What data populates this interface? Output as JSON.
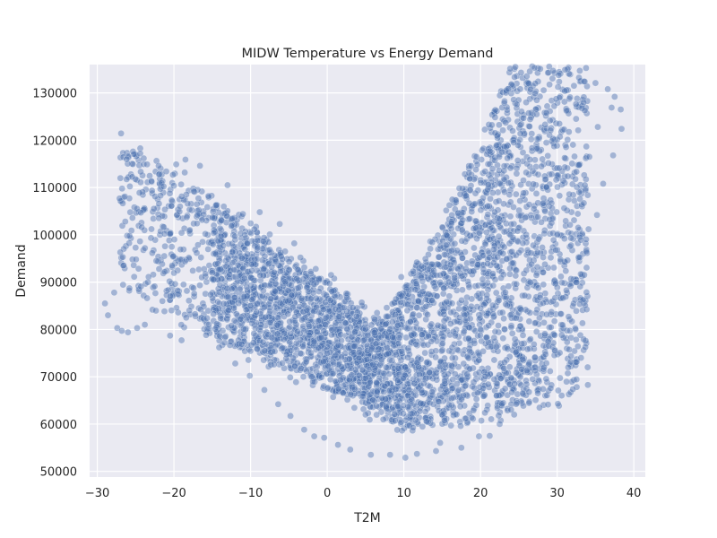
{
  "chart_data": {
    "type": "scatter",
    "title": "MIDW Temperature vs Energy Demand",
    "xlabel": "T2M",
    "ylabel": "Demand",
    "xlim": [
      -31.0,
      41.5
    ],
    "ylim": [
      48800,
      136000
    ],
    "xticks": [
      -30,
      -20,
      -10,
      0,
      10,
      20,
      30,
      40
    ],
    "yticks": [
      50000,
      60000,
      70000,
      80000,
      90000,
      100000,
      110000,
      120000,
      130000
    ],
    "grid": true,
    "legend": "none",
    "style": {
      "background": "#eaeaf2",
      "grid_color": "#ffffff",
      "point_color": "#4c72b0",
      "point_edge": "#ffffff",
      "point_opacity": 0.45
    },
    "points": [
      [
        -29,
        85500
      ],
      [
        -28.6,
        83000
      ],
      [
        -27.8,
        87800
      ],
      [
        -27.4,
        80300
      ],
      [
        -26.8,
        79700
      ],
      [
        -26,
        79400
      ],
      [
        -24.8,
        80300
      ],
      [
        -23.8,
        81000
      ],
      [
        -27.1,
        107700
      ],
      [
        -26.4,
        108100
      ],
      [
        -24.5,
        108900
      ],
      [
        -23.5,
        114900
      ],
      [
        -22,
        114600
      ],
      [
        -21,
        113400
      ],
      [
        -19.7,
        114900
      ],
      [
        -18.5,
        115900
      ],
      [
        -16.6,
        114600
      ],
      [
        -13,
        110500
      ],
      [
        -27,
        96300
      ],
      [
        -26.6,
        93500
      ],
      [
        -25.8,
        99800
      ],
      [
        -25,
        97300
      ],
      [
        -24.2,
        101600
      ],
      [
        -20.5,
        78700
      ],
      [
        -19,
        77700
      ],
      [
        -8.8,
        104800
      ],
      [
        -6.2,
        102300
      ],
      [
        -4.3,
        98200
      ],
      [
        12.3,
        93400
      ],
      [
        15.1,
        98700
      ],
      [
        17.7,
        104700
      ],
      [
        20.6,
        113400
      ],
      [
        22.8,
        117500
      ],
      [
        25.2,
        121400
      ],
      [
        26.4,
        122900
      ],
      [
        28.6,
        125800
      ],
      [
        31,
        130400
      ],
      [
        33.6,
        132400
      ],
      [
        35,
        132100
      ],
      [
        36.6,
        130800
      ],
      [
        37.5,
        129200
      ],
      [
        38.3,
        126500
      ],
      [
        38.4,
        122400
      ],
      [
        37.1,
        126900
      ],
      [
        37.3,
        116800
      ],
      [
        35.3,
        122800
      ],
      [
        36,
        110800
      ],
      [
        34.2,
        116500
      ],
      [
        33.7,
        109400
      ],
      [
        35.2,
        104200
      ],
      [
        34.1,
        101200
      ],
      [
        33.8,
        96500
      ],
      [
        32.5,
        90000
      ],
      [
        31.5,
        82700
      ],
      [
        30.6,
        78800
      ],
      [
        29.7,
        75500
      ],
      [
        28.3,
        72000
      ],
      [
        26.8,
        69500
      ],
      [
        25.5,
        66500
      ],
      [
        24,
        63000
      ],
      [
        22.5,
        60000
      ],
      [
        21.2,
        57500
      ],
      [
        19.8,
        57400
      ],
      [
        17.5,
        55000
      ],
      [
        14.2,
        54300
      ],
      [
        11.7,
        53700
      ],
      [
        10.2,
        52900
      ],
      [
        8.2,
        53500
      ],
      [
        5.7,
        53500
      ],
      [
        3,
        54600
      ],
      [
        1.4,
        55600
      ],
      [
        -0.4,
        57100
      ],
      [
        -1.7,
        57400
      ],
      [
        -3,
        58800
      ],
      [
        -4.8,
        61700
      ],
      [
        -6.4,
        64200
      ],
      [
        -8.2,
        67200
      ],
      [
        -10.1,
        70200
      ],
      [
        -12,
        72800
      ],
      [
        -14.1,
        76200
      ],
      [
        -15.8,
        78800
      ],
      [
        -18,
        84000
      ],
      [
        -21.5,
        86000
      ],
      [
        -23.4,
        90000
      ],
      [
        -22.3,
        94500
      ],
      [
        -20.5,
        100200
      ],
      [
        -19.2,
        106000
      ],
      [
        -17.4,
        109200
      ],
      [
        -15.5,
        108200
      ],
      [
        -13.5,
        106000
      ],
      [
        -11,
        104400
      ],
      [
        -9.5,
        101200
      ],
      [
        -7.5,
        100100
      ],
      [
        -5.5,
        96500
      ],
      [
        -3.5,
        95200
      ],
      [
        -1.5,
        92800
      ],
      [
        0.5,
        91500
      ],
      [
        2.5,
        87600
      ],
      [
        4.5,
        85700
      ],
      [
        6.5,
        83500
      ],
      [
        8.5,
        81600
      ],
      [
        10.5,
        85300
      ],
      [
        11.5,
        88400
      ],
      [
        13.5,
        91000
      ],
      [
        15.5,
        97800
      ],
      [
        18.6,
        103400
      ],
      [
        21,
        110600
      ],
      [
        23.5,
        116200
      ],
      [
        -2,
        70000
      ],
      [
        5,
        62000
      ],
      [
        15,
        62000
      ],
      [
        25,
        80000
      ],
      [
        -15,
        92000
      ],
      [
        -10,
        85000
      ],
      [
        0,
        75000
      ],
      [
        10,
        68000
      ],
      [
        20,
        80000
      ],
      [
        30,
        100000
      ]
    ]
  }
}
